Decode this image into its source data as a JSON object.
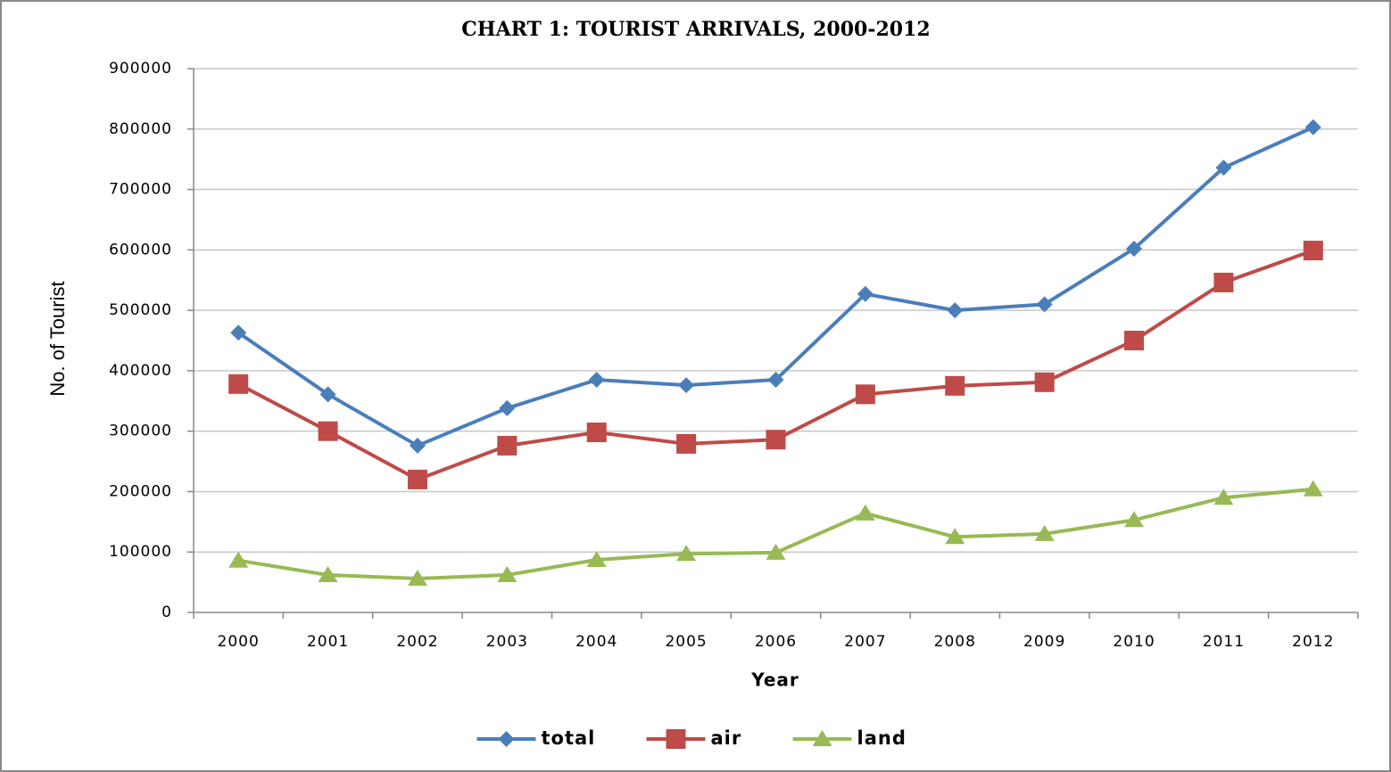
{
  "chart_data": {
    "type": "line",
    "title": "CHART 1: TOURIST ARRIVALS, 2000-2012",
    "x_label": "Year",
    "y_label": "No. of Tourist",
    "categories": [
      "2000",
      "2001",
      "2002",
      "2003",
      "2004",
      "2005",
      "2006",
      "2007",
      "2008",
      "2009",
      "2010",
      "2011",
      "2012"
    ],
    "series": [
      {
        "name": "total",
        "color": "#4a7ebb",
        "marker": "diamond",
        "values": [
          463000,
          361000,
          276000,
          338000,
          385000,
          376000,
          385000,
          527000,
          500000,
          510000,
          602000,
          736000,
          803000
        ]
      },
      {
        "name": "air",
        "color": "#be4b48",
        "marker": "square",
        "values": [
          378000,
          300000,
          220000,
          276000,
          298000,
          279000,
          286000,
          361000,
          375000,
          381000,
          450000,
          546000,
          599000
        ]
      },
      {
        "name": "land",
        "color": "#98b954",
        "marker": "triangle",
        "values": [
          86000,
          62000,
          56000,
          62000,
          87000,
          97000,
          99000,
          164000,
          125000,
          130000,
          153000,
          190000,
          204000
        ]
      }
    ],
    "ylim": [
      0,
      900000
    ],
    "yticks": [
      0,
      100000,
      200000,
      300000,
      400000,
      500000,
      600000,
      700000,
      800000,
      900000
    ],
    "grid": true,
    "legend": "bottom"
  }
}
